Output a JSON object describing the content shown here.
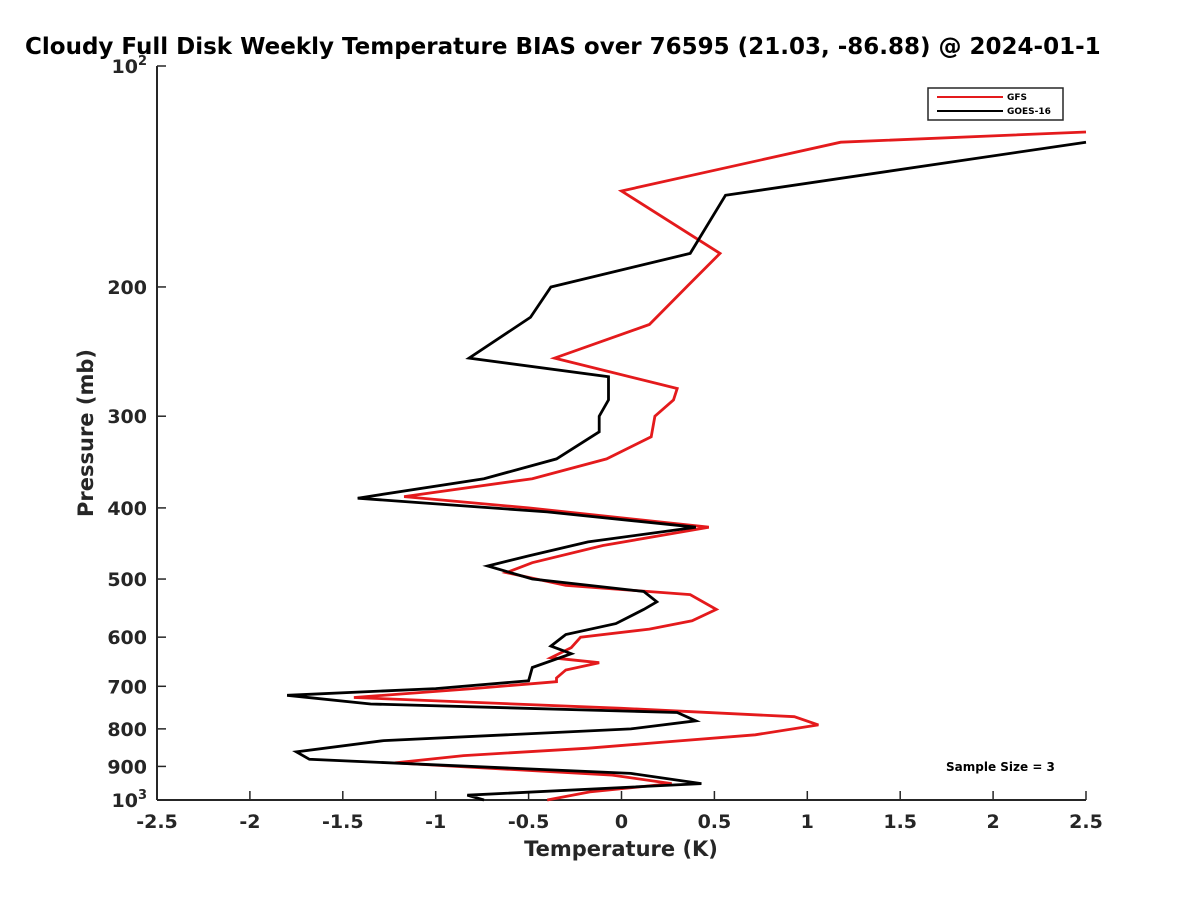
{
  "chart_data": {
    "type": "line",
    "title": "Cloudy Full Disk Weekly Temperature BIAS over 76595 (21.03, -86.88) @ 2024-01-1",
    "xlabel": "Temperature (K)",
    "ylabel": "Pressure (mb)",
    "xlim": [
      -2.5,
      2.5
    ],
    "ylim": [
      1000,
      100
    ],
    "yscale": "log",
    "x_ticks": [
      -2.5,
      -2,
      -1.5,
      -1,
      -0.5,
      0,
      0.5,
      1,
      1.5,
      2,
      2.5
    ],
    "x_tick_labels": [
      "-2.5",
      "-2",
      "-1.5",
      "-1",
      "-0.5",
      "0",
      "0.5",
      "1",
      "1.5",
      "2",
      "2.5"
    ],
    "y_ticks": [
      {
        "value": 100,
        "label": "10",
        "sup": "2"
      },
      {
        "value": 200,
        "label": "200",
        "sup": ""
      },
      {
        "value": 300,
        "label": "300",
        "sup": ""
      },
      {
        "value": 400,
        "label": "400",
        "sup": ""
      },
      {
        "value": 500,
        "label": "500",
        "sup": ""
      },
      {
        "value": 600,
        "label": "600",
        "sup": ""
      },
      {
        "value": 700,
        "label": "700",
        "sup": ""
      },
      {
        "value": 800,
        "label": "800",
        "sup": ""
      },
      {
        "value": 900,
        "label": "900",
        "sup": ""
      },
      {
        "value": 1000,
        "label": "10",
        "sup": "3"
      }
    ],
    "legend_position": "top-right",
    "annotation": "Sample Size = 3",
    "series": [
      {
        "name": "GFS",
        "color": "#e41a1c",
        "points": [
          [
            2.5,
            123
          ],
          [
            1.18,
            127
          ],
          [
            0.0,
            148
          ],
          [
            0.53,
            180
          ],
          [
            0.35,
            200
          ],
          [
            0.15,
            225
          ],
          [
            -0.36,
            250
          ],
          [
            0.3,
            275
          ],
          [
            0.28,
            285
          ],
          [
            0.18,
            300
          ],
          [
            0.16,
            320
          ],
          [
            -0.08,
            343
          ],
          [
            -0.48,
            365
          ],
          [
            -1.17,
            386
          ],
          [
            -0.5,
            400
          ],
          [
            0.47,
            425
          ],
          [
            -0.1,
            450
          ],
          [
            -0.48,
            475
          ],
          [
            -0.62,
            490
          ],
          [
            -0.3,
            510
          ],
          [
            0.37,
            525
          ],
          [
            0.51,
            550
          ],
          [
            0.38,
            570
          ],
          [
            0.15,
            585
          ],
          [
            -0.22,
            600
          ],
          [
            -0.27,
            620
          ],
          [
            -0.38,
            640
          ],
          [
            -0.12,
            650
          ],
          [
            -0.3,
            665
          ],
          [
            -0.35,
            682
          ],
          [
            -0.35,
            690
          ],
          [
            -0.8,
            705
          ],
          [
            -1.44,
            725
          ],
          [
            0.0,
            750
          ],
          [
            0.93,
            770
          ],
          [
            1.06,
            790
          ],
          [
            0.72,
            815
          ],
          [
            0.2,
            835
          ],
          [
            -0.18,
            850
          ],
          [
            -0.85,
            870
          ],
          [
            -1.22,
            890
          ],
          [
            -0.05,
            925
          ],
          [
            0.27,
            950
          ],
          [
            -0.17,
            975
          ],
          [
            -0.4,
            1000
          ]
        ]
      },
      {
        "name": "GOES-16",
        "color": "#000000",
        "points": [
          [
            2.5,
            127
          ],
          [
            0.56,
            150
          ],
          [
            0.37,
            180
          ],
          [
            -0.38,
            200
          ],
          [
            -0.49,
            220
          ],
          [
            -0.82,
            250
          ],
          [
            -0.07,
            265
          ],
          [
            -0.07,
            285
          ],
          [
            -0.12,
            300
          ],
          [
            -0.12,
            315
          ],
          [
            -0.35,
            343
          ],
          [
            -0.74,
            365
          ],
          [
            -1.42,
            388
          ],
          [
            -0.4,
            405
          ],
          [
            0.4,
            425
          ],
          [
            -0.18,
            445
          ],
          [
            -0.5,
            465
          ],
          [
            -0.72,
            480
          ],
          [
            -0.48,
            500
          ],
          [
            0.12,
            520
          ],
          [
            0.19,
            537
          ],
          [
            0.12,
            550
          ],
          [
            -0.03,
            575
          ],
          [
            -0.3,
            595
          ],
          [
            -0.38,
            617
          ],
          [
            -0.27,
            632
          ],
          [
            -0.48,
            660
          ],
          [
            -0.5,
            688
          ],
          [
            -1.0,
            705
          ],
          [
            -1.8,
            720
          ],
          [
            -1.35,
            740
          ],
          [
            0.3,
            760
          ],
          [
            0.4,
            780
          ],
          [
            0.05,
            800
          ],
          [
            -1.28,
            830
          ],
          [
            -1.75,
            860
          ],
          [
            -1.68,
            880
          ],
          [
            0.05,
            920
          ],
          [
            0.43,
            950
          ],
          [
            -0.83,
            985
          ],
          [
            -0.74,
            1000
          ]
        ]
      }
    ]
  }
}
